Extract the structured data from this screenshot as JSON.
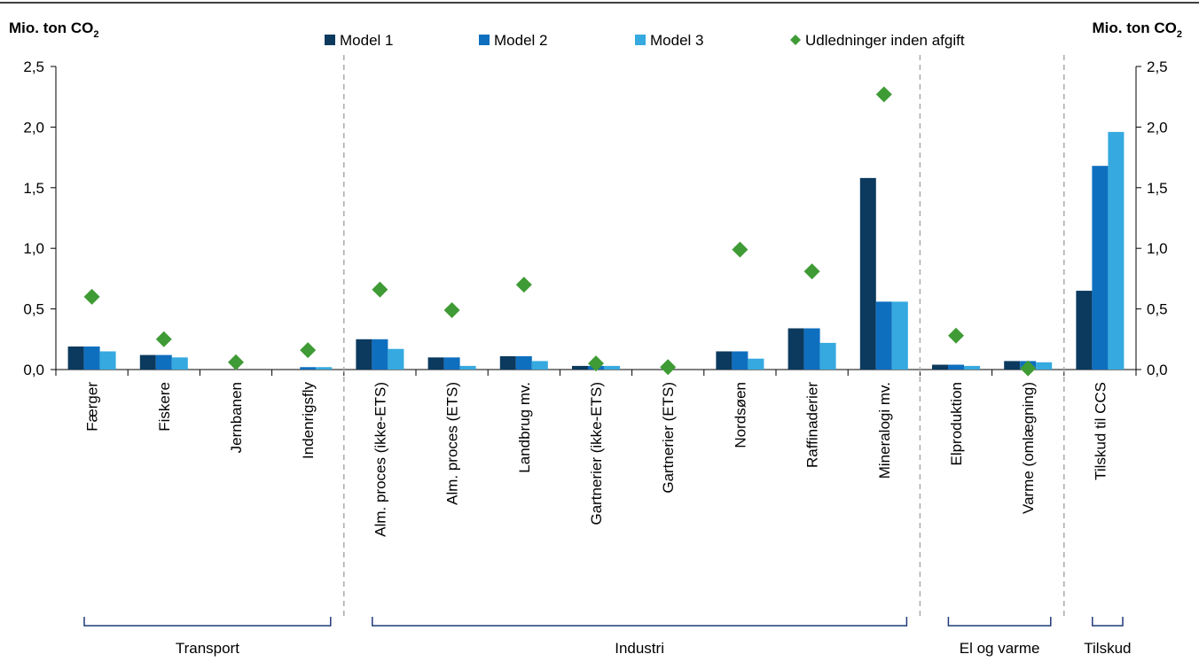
{
  "chart_data": {
    "type": "bar",
    "y_unit_left": "Mio. ton CO",
    "y_unit_right": "Mio. ton CO",
    "y_unit_subscript": "2",
    "ylim": [
      0,
      2.5
    ],
    "yticks": [
      "0,0",
      "0,5",
      "1,0",
      "1,5",
      "2,0",
      "2,5"
    ],
    "grid": false,
    "legend_position": "top",
    "categories": [
      "Færger",
      "Fiskere",
      "Jernbanen",
      "Indenrigsfly",
      "Alm. proces (ikke-ETS)",
      "Alm. proces (ETS)",
      "Landbrug mv.",
      "Gartnerier (ikke-ETS)",
      "Gartnerier (ETS)",
      "Nordsøen",
      "Raffinaderier",
      "Mineralogi mv.",
      "Elproduktion",
      "Varme (omlægning)",
      "Tilskud til CCS"
    ],
    "series": [
      {
        "name": "Model 1",
        "kind": "bar",
        "color": "#0b3a5e",
        "values": [
          0.19,
          0.12,
          0.0,
          0.0,
          0.25,
          0.1,
          0.11,
          0.03,
          0.0,
          0.15,
          0.34,
          1.58,
          0.04,
          0.07,
          0.65
        ]
      },
      {
        "name": "Model 2",
        "kind": "bar",
        "color": "#0f6fbf",
        "values": [
          0.19,
          0.12,
          0.0,
          0.02,
          0.25,
          0.1,
          0.11,
          0.03,
          0.0,
          0.15,
          0.34,
          0.56,
          0.04,
          0.07,
          1.68
        ]
      },
      {
        "name": "Model 3",
        "kind": "bar",
        "color": "#35a9e0",
        "values": [
          0.15,
          0.1,
          0.0,
          0.02,
          0.17,
          0.03,
          0.07,
          0.03,
          0.0,
          0.09,
          0.22,
          0.56,
          0.03,
          0.06,
          1.96
        ]
      },
      {
        "name": "Udledninger inden afgift",
        "kind": "marker",
        "color": "#3f9b35",
        "values": [
          0.6,
          0.25,
          0.06,
          0.16,
          0.66,
          0.49,
          0.7,
          0.05,
          0.02,
          0.99,
          0.81,
          2.27,
          0.28,
          0.01,
          null
        ]
      }
    ],
    "groups": [
      {
        "label": "Transport",
        "from": 0,
        "to": 3
      },
      {
        "label": "Industri",
        "from": 4,
        "to": 11
      },
      {
        "label": "El og varme",
        "from": 12,
        "to": 13
      },
      {
        "label": "Tilskud",
        "from": 14,
        "to": 14
      }
    ]
  }
}
